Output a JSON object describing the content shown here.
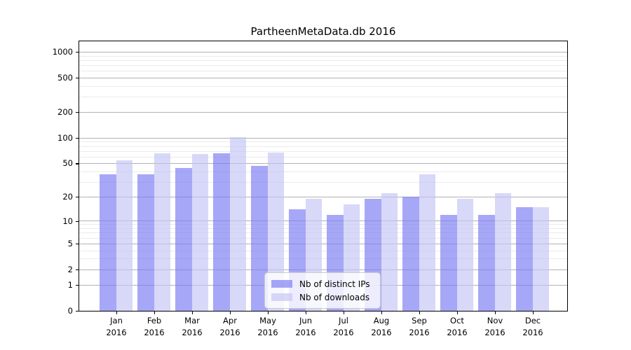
{
  "title": "PartheenMetaData.db 2016",
  "chart_data": {
    "type": "bar",
    "title": "PartheenMetaData.db 2016",
    "categories": [
      "Jan 2016",
      "Feb 2016",
      "Mar 2016",
      "Apr 2016",
      "May 2016",
      "Jun 2016",
      "Jul 2016",
      "Aug 2016",
      "Sep 2016",
      "Oct 2016",
      "Nov 2016",
      "Dec 2016"
    ],
    "x_tick_line1": [
      "Jan",
      "Feb",
      "Mar",
      "Apr",
      "May",
      "Jun",
      "Jul",
      "Aug",
      "Sep",
      "Oct",
      "Nov",
      "Dec"
    ],
    "x_tick_line2": "2016",
    "series": [
      {
        "name": "Nb of distinct IPs",
        "color": "#7878f2",
        "alpha": 0.65,
        "values": [
          37,
          37,
          44,
          66,
          47,
          14,
          12,
          19,
          20,
          12,
          12,
          15
        ]
      },
      {
        "name": "Nb of downloads",
        "color": "#c3c3f4",
        "alpha": 0.65,
        "values": [
          55,
          66,
          65,
          102,
          67,
          19,
          16,
          22,
          37,
          19,
          22,
          15
        ]
      }
    ],
    "xlabel": "",
    "ylabel": "",
    "yscale": "log1p",
    "yticks": [
      0,
      1,
      2,
      5,
      10,
      20,
      50,
      100,
      200,
      500,
      1000
    ],
    "minor_yticks": [
      3,
      4,
      6,
      7,
      8,
      9,
      30,
      40,
      60,
      70,
      80,
      90,
      300,
      400,
      600,
      700,
      800,
      900
    ],
    "ylim": [
      0,
      1340
    ],
    "grid": true,
    "legend_position": "lower center",
    "grid_major_color": "#b2b2b2",
    "grid_minor_color": "#ebebeb"
  }
}
